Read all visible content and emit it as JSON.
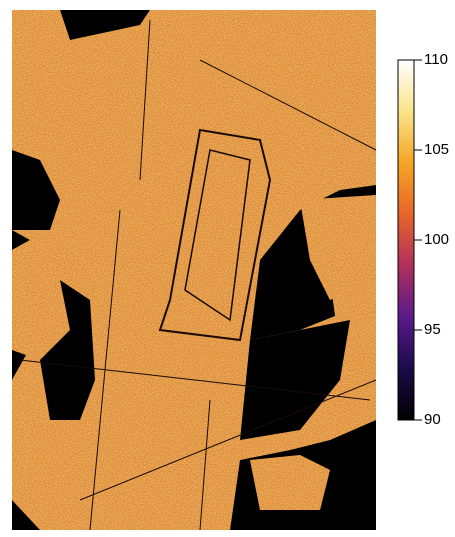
{
  "chart_data": {
    "type": "colormap-image",
    "colorbar": {
      "lim": [
        90,
        110
      ],
      "ticks": [
        90,
        95,
        100,
        105,
        110
      ],
      "colors": [
        "#000000",
        "#1a0b4a",
        "#5a1a8a",
        "#b0305c",
        "#e8642a",
        "#f5a623",
        "#fbe38a",
        "#ffffff"
      ]
    }
  }
}
